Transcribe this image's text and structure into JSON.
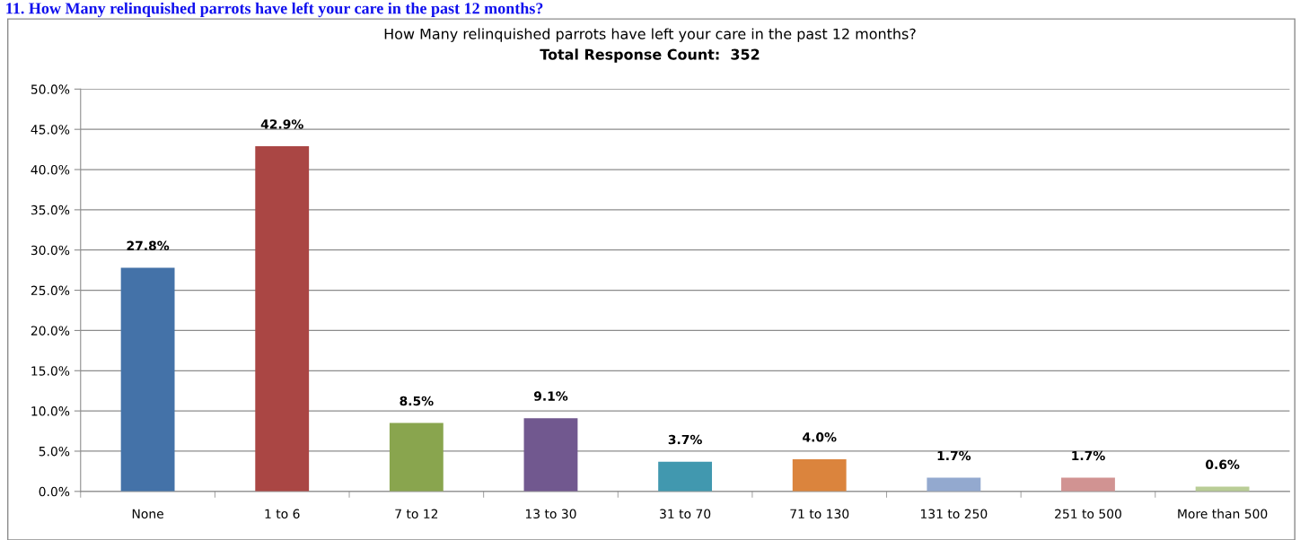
{
  "chart_data": {
    "type": "bar",
    "title": "How Many relinquished parrots have left your care in the past 12 months?",
    "subtitle": "Total Response Count:  352",
    "annotations": [
      "11. How Many relinquished parrots have left your care in the past 12 months?"
    ],
    "categories": [
      "None",
      "1 to 6",
      "7 to 12",
      "13 to 30",
      "31 to 70",
      "71 to 130",
      "131 to 250",
      "251 to 500",
      "More than 500"
    ],
    "values": [
      27.8,
      42.9,
      8.5,
      9.1,
      3.7,
      4.0,
      1.7,
      1.7,
      0.6
    ],
    "colors": [
      "#4472a8",
      "#aa4644",
      "#89a54e",
      "#71588f",
      "#4198af",
      "#db843d",
      "#93a9cf",
      "#d19392",
      "#b9cd96"
    ],
    "value_labels": [
      "27.8%",
      "42.9%",
      "8.5%",
      "9.1%",
      "3.7%",
      "4.0%",
      "1.7%",
      "1.7%",
      "0.6%"
    ],
    "ylim": [
      0,
      50
    ],
    "yticks": [
      {
        "value": 0,
        "label": "0.0%"
      },
      {
        "value": 5,
        "label": "5.0%"
      },
      {
        "value": 10,
        "label": "10.0%"
      },
      {
        "value": 15,
        "label": "15.0%"
      },
      {
        "value": 20,
        "label": "20.0%"
      },
      {
        "value": 25,
        "label": "25.0%"
      },
      {
        "value": 30,
        "label": "30.0%"
      },
      {
        "value": 35,
        "label": "35.0%"
      },
      {
        "value": 40,
        "label": "40.0%"
      },
      {
        "value": 45,
        "label": "45.0%"
      },
      {
        "value": 50,
        "label": "50.0%"
      }
    ],
    "grid": "y",
    "legend": false
  }
}
